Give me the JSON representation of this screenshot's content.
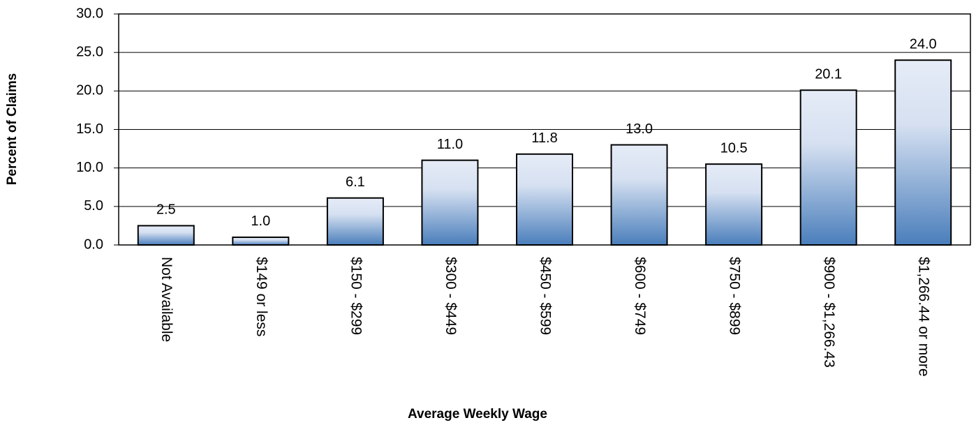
{
  "chart_data": {
    "type": "bar",
    "y_label": "Percent of Claims",
    "x_label": "Average Weekly Wage",
    "categories": [
      "Not Available",
      "$149 or less",
      "$150 - $299",
      "$300 - $449",
      "$450 - $599",
      "$600 - $749",
      "$750 - $899",
      "$900 - $1,266.43",
      "$1,266.44 or more"
    ],
    "values": [
      2.5,
      1.0,
      6.1,
      11.0,
      11.8,
      13.0,
      10.5,
      20.1,
      24.0
    ],
    "value_labels": [
      "2.5",
      "1.0",
      "6.1",
      "11.0",
      "11.8",
      "13.0",
      "10.5",
      "20.1",
      "24.0"
    ],
    "color": "#4a7ebb",
    "ylim": [
      0,
      30
    ],
    "yticks": [
      {
        "value": 0,
        "label": "0.0"
      },
      {
        "value": 5,
        "label": "5.0"
      },
      {
        "value": 10,
        "label": "10.0"
      },
      {
        "value": 15,
        "label": "15.0"
      },
      {
        "value": 20,
        "label": "20.0"
      },
      {
        "value": 25,
        "label": "25.0"
      },
      {
        "value": 30,
        "label": "30.0"
      }
    ],
    "grid": true
  }
}
